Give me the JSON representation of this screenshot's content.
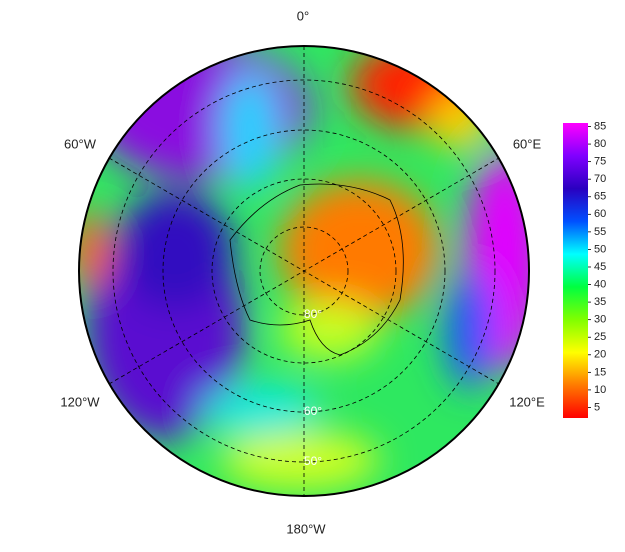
{
  "map": {
    "longitude_labels": [
      "0°",
      "60°E",
      "120°E",
      "180°W",
      "120°W",
      "60°W"
    ],
    "latitude_labels": [
      "80°",
      "60°",
      "50°"
    ]
  },
  "colorbar": {
    "range": [
      2,
      86
    ],
    "ticks": [
      5,
      10,
      15,
      20,
      25,
      30,
      35,
      40,
      45,
      50,
      55,
      60,
      65,
      70,
      75,
      80,
      85
    ],
    "colors": [
      "#ff0000",
      "#ff7a00",
      "#ffff00",
      "#80ff00",
      "#00ff40",
      "#00ffff",
      "#0050ff",
      "#2a00c0",
      "#8000ff",
      "#ff00ff"
    ]
  }
}
